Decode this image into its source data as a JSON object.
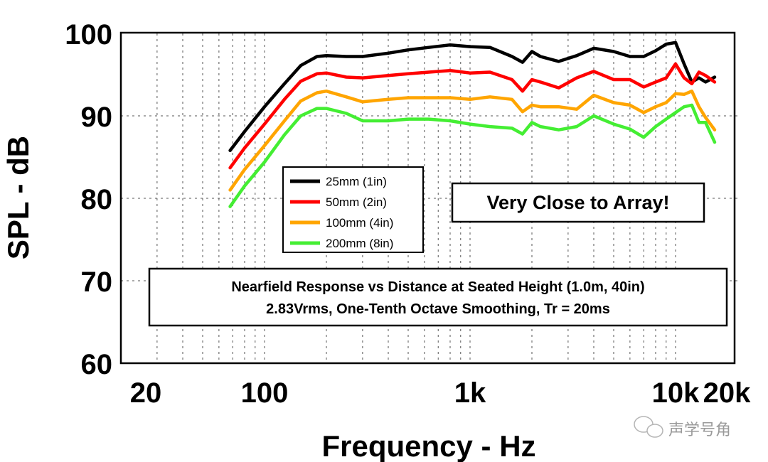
{
  "chart_data": {
    "type": "line",
    "xlabel": "Frequency - Hz",
    "ylabel": "SPL - dB",
    "xscale": "log",
    "xlim": [
      20,
      20000
    ],
    "ylim": [
      60,
      100
    ],
    "grid": true,
    "xticks": [
      {
        "value": 20,
        "label": "20"
      },
      {
        "value": 100,
        "label": "100"
      },
      {
        "value": 1000,
        "label": "1k"
      },
      {
        "value": 10000,
        "label": "10k"
      },
      {
        "value": 20000,
        "label": "20k"
      }
    ],
    "yticks": [
      {
        "value": 60,
        "label": "60"
      },
      {
        "value": 70,
        "label": "70"
      },
      {
        "value": 80,
        "label": "80"
      },
      {
        "value": 90,
        "label": "90"
      },
      {
        "value": 100,
        "label": "100"
      }
    ],
    "x": [
      68,
      80,
      100,
      125,
      150,
      180,
      200,
      250,
      300,
      400,
      500,
      630,
      800,
      1000,
      1250,
      1600,
      1800,
      2000,
      2200,
      2700,
      3300,
      4000,
      5000,
      6000,
      7000,
      8000,
      9000,
      10000,
      11000,
      12000,
      13000,
      14000,
      15500
    ],
    "series": [
      {
        "name": "25mm (1in)",
        "color": "#000000",
        "values": [
          85.8,
          88.1,
          91.1,
          93.9,
          96.1,
          97.2,
          97.3,
          97.2,
          97.2,
          97.6,
          98.0,
          98.3,
          98.6,
          98.4,
          98.3,
          97.2,
          96.5,
          97.8,
          97.2,
          96.6,
          97.3,
          98.2,
          97.8,
          97.2,
          97.2,
          97.9,
          98.7,
          98.9,
          96.3,
          94.1,
          94.6,
          94.1,
          94.7
        ]
      },
      {
        "name": "50mm (2in)",
        "color": "#ff0000",
        "values": [
          83.7,
          86.1,
          89.0,
          92.0,
          94.2,
          95.1,
          95.2,
          94.7,
          94.6,
          94.9,
          95.1,
          95.3,
          95.5,
          95.2,
          95.3,
          94.4,
          93.0,
          94.4,
          94.1,
          93.4,
          94.6,
          95.4,
          94.4,
          94.4,
          93.5,
          94.1,
          94.6,
          96.3,
          94.6,
          93.9,
          95.3,
          94.9,
          94.1
        ]
      },
      {
        "name": "100mm (4in)",
        "color": "#ffa500",
        "values": [
          81.0,
          83.5,
          86.4,
          89.4,
          91.8,
          92.8,
          93.0,
          92.3,
          91.7,
          92.0,
          92.2,
          92.2,
          92.2,
          92.0,
          92.3,
          92.0,
          90.5,
          91.3,
          91.1,
          91.1,
          90.8,
          92.5,
          91.6,
          91.3,
          90.4,
          91.1,
          91.6,
          92.7,
          92.6,
          93.0,
          91.1,
          89.8,
          88.3
        ]
      },
      {
        "name": "200mm (8in)",
        "color": "#44ee33",
        "values": [
          79.0,
          81.5,
          84.4,
          87.7,
          90.0,
          90.9,
          90.9,
          90.3,
          89.4,
          89.4,
          89.6,
          89.6,
          89.4,
          89.0,
          88.7,
          88.5,
          87.8,
          89.2,
          88.7,
          88.3,
          88.7,
          90.0,
          89.0,
          88.4,
          87.4,
          88.7,
          89.6,
          90.4,
          91.1,
          91.3,
          89.2,
          89.2,
          86.8
        ]
      }
    ],
    "annotations": {
      "callout": "Very Close to Array!",
      "title_line1": "Nearfield Response vs Distance at Seated Height (1.0m, 40in)",
      "title_line2": "2.83Vrms, One-Tenth Octave Smoothing, Tr = 20ms"
    },
    "legend_placement": "center-left"
  },
  "watermark": "声学号角"
}
